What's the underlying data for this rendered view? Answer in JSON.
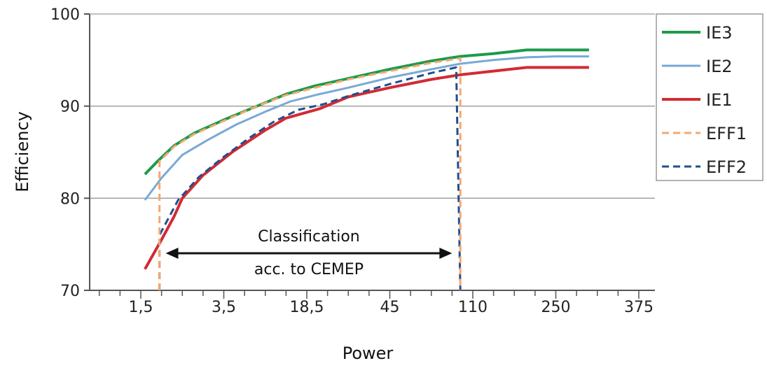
{
  "chart_data": {
    "type": "line",
    "title": "",
    "xlabel": "Power",
    "ylabel": "Efficiency",
    "ylim": [
      70,
      100
    ],
    "yticks": [
      "70",
      "80",
      "90",
      "100"
    ],
    "xticks": [
      "1,5",
      "3,5",
      "18,5",
      "45",
      "110",
      "250",
      "375"
    ],
    "grid": "horizontal",
    "legend_position": "right",
    "series": [
      {
        "name": "IE3",
        "color": "#1e9a4b",
        "dash": "solid",
        "points": [
          [
            0.1,
            82.6
          ],
          [
            0.4,
            84.0
          ],
          [
            0.8,
            85.7
          ],
          [
            1.3,
            87.1
          ],
          [
            2.0,
            88.5
          ],
          [
            2.8,
            90.0
          ],
          [
            3.5,
            91.3
          ],
          [
            4.2,
            92.2
          ],
          [
            5.0,
            93.0
          ],
          [
            6.0,
            94.0
          ],
          [
            7.0,
            94.9
          ],
          [
            7.7,
            95.4
          ],
          [
            8.5,
            95.7
          ],
          [
            9.3,
            96.1
          ],
          [
            10.0,
            96.1
          ],
          [
            10.8,
            96.1
          ]
        ]
      },
      {
        "name": "IE2",
        "color": "#7aa9d4",
        "dash": "solid",
        "points": [
          [
            0.1,
            79.8
          ],
          [
            0.5,
            82.2
          ],
          [
            1.0,
            84.7
          ],
          [
            1.6,
            86.3
          ],
          [
            2.3,
            88.0
          ],
          [
            3.0,
            89.4
          ],
          [
            3.6,
            90.5
          ],
          [
            4.3,
            91.3
          ],
          [
            5.0,
            92.0
          ],
          [
            6.0,
            93.1
          ],
          [
            7.0,
            94.0
          ],
          [
            7.7,
            94.6
          ],
          [
            8.5,
            95.0
          ],
          [
            9.3,
            95.3
          ],
          [
            10.0,
            95.4
          ],
          [
            10.8,
            95.4
          ]
        ]
      },
      {
        "name": "IE1",
        "color": "#d12b33",
        "dash": "solid",
        "points": [
          [
            0.1,
            72.3
          ],
          [
            0.5,
            75.5
          ],
          [
            0.8,
            78.0
          ],
          [
            1.0,
            80.0
          ],
          [
            1.5,
            82.5
          ],
          [
            2.2,
            85.0
          ],
          [
            3.0,
            87.4
          ],
          [
            3.5,
            88.7
          ],
          [
            4.3,
            89.7
          ],
          [
            5.0,
            91.0
          ],
          [
            6.0,
            92.0
          ],
          [
            7.0,
            92.9
          ],
          [
            7.7,
            93.4
          ],
          [
            8.5,
            93.8
          ],
          [
            9.3,
            94.2
          ],
          [
            10.0,
            94.2
          ],
          [
            10.8,
            94.2
          ]
        ]
      },
      {
        "name": "EFF1",
        "color": "#f3a86e",
        "dash": "dashed",
        "points": [
          [
            0.45,
            70.0
          ],
          [
            0.45,
            84.0
          ],
          [
            0.8,
            85.6
          ],
          [
            1.3,
            87.0
          ],
          [
            2.0,
            88.4
          ],
          [
            2.8,
            90.0
          ],
          [
            3.5,
            91.2
          ],
          [
            4.2,
            92.0
          ],
          [
            5.0,
            92.9
          ],
          [
            6.0,
            93.8
          ],
          [
            7.0,
            94.7
          ],
          [
            7.7,
            95.2
          ],
          [
            7.7,
            70.0
          ]
        ]
      },
      {
        "name": "EFF2",
        "color": "#1f4f8f",
        "dash": "dashed",
        "points": [
          [
            0.45,
            70.0
          ],
          [
            0.45,
            76.0
          ],
          [
            0.9,
            79.8
          ],
          [
            1.4,
            82.3
          ],
          [
            2.0,
            84.5
          ],
          [
            2.6,
            86.5
          ],
          [
            3.2,
            88.3
          ],
          [
            3.8,
            89.6
          ],
          [
            4.4,
            90.2
          ],
          [
            5.0,
            91.1
          ],
          [
            6.0,
            92.4
          ],
          [
            7.0,
            93.6
          ],
          [
            7.6,
            94.2
          ],
          [
            7.7,
            70.0
          ]
        ]
      }
    ],
    "annotation": {
      "line1": "Classification",
      "line2": "acc. to CEMEP",
      "from_x": 0.6,
      "to_x": 7.5
    }
  }
}
